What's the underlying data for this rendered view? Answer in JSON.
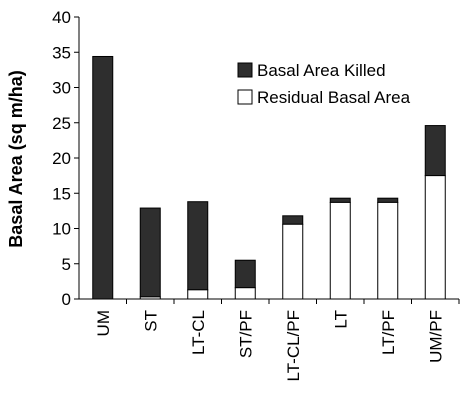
{
  "chart_data": {
    "type": "bar",
    "stacked": true,
    "categories": [
      "UM",
      "ST",
      "LT-CL",
      "ST/PF",
      "LT-CL/PF",
      "LT",
      "LT/PF",
      "UM/PF"
    ],
    "series": [
      {
        "name": "Residual Basal Area",
        "values": [
          0,
          0.3,
          1.3,
          1.6,
          10.6,
          13.7,
          13.7,
          17.5
        ],
        "color": "#ffffff"
      },
      {
        "name": "Basal Area Killed",
        "values": [
          34.4,
          12.6,
          12.5,
          3.9,
          1.2,
          0.6,
          0.6,
          7.1
        ],
        "color": "#2e2e2e"
      }
    ],
    "ylabel": "Basal Area (sq m/ha)",
    "xlabel": "",
    "ylim": [
      0,
      40
    ],
    "yticks": [
      "0",
      "5",
      "10",
      "15",
      "20",
      "25",
      "30",
      "35",
      "40"
    ],
    "grid": false,
    "legend_position": "top-right",
    "legend_order": [
      "Basal Area Killed",
      "Residual Basal Area"
    ]
  }
}
